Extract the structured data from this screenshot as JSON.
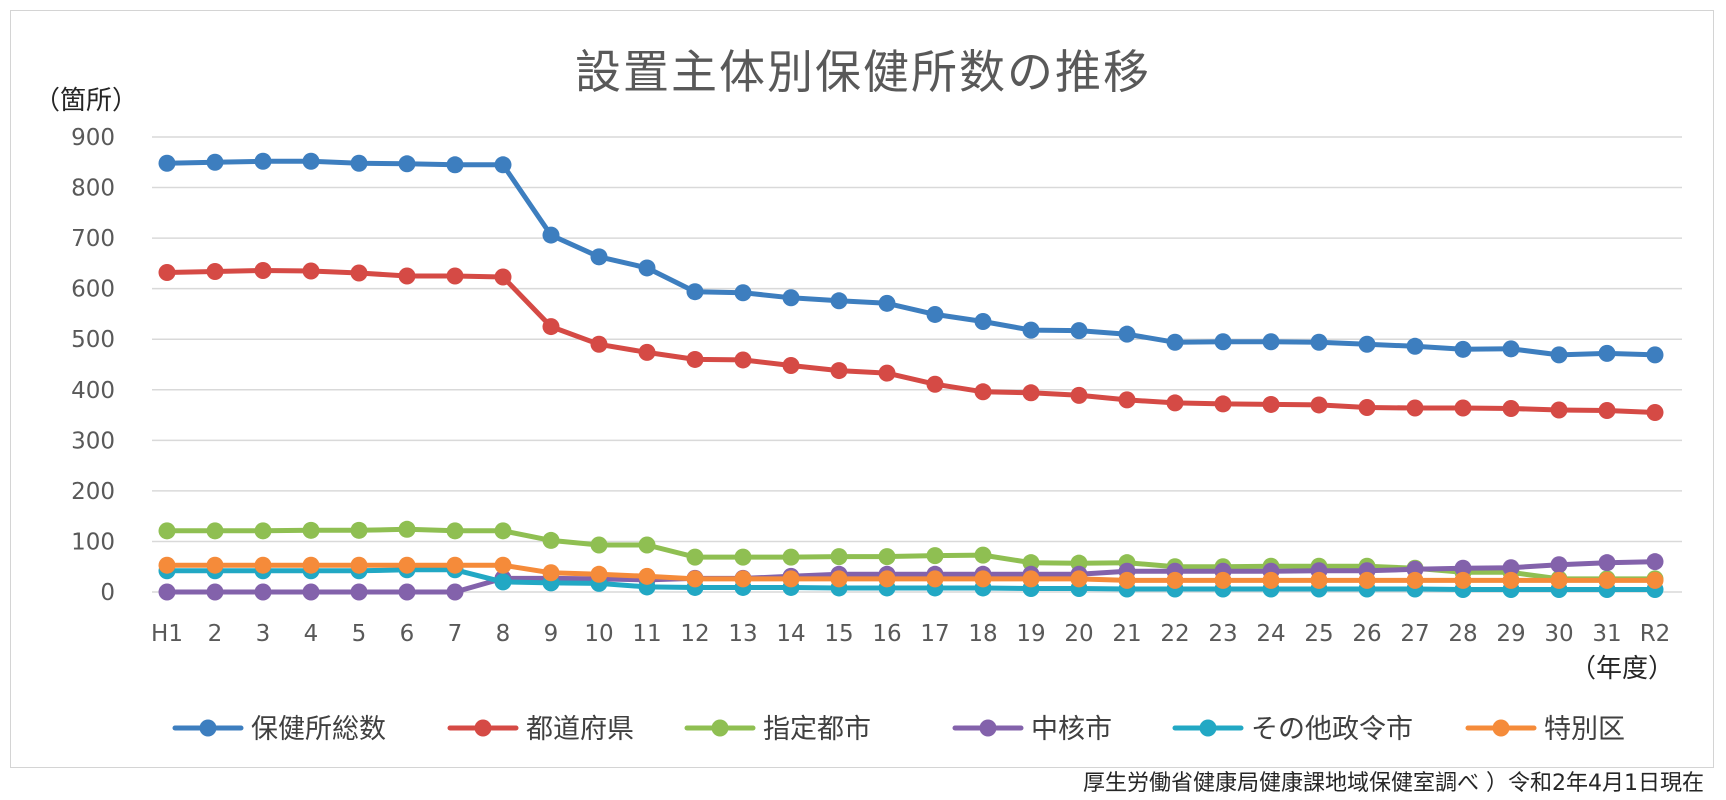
{
  "chart_data": {
    "type": "line",
    "title": "設置主体別保健所数の推移",
    "ylabel": "（箇所）",
    "xlabel": "（年度）",
    "ylim": [
      0,
      900
    ],
    "yticks": [
      "0",
      "100",
      "200",
      "300",
      "400",
      "500",
      "600",
      "700",
      "800",
      "900"
    ],
    "grid": true,
    "legend_position": "bottom",
    "categories": [
      "H1",
      "2",
      "3",
      "4",
      "5",
      "6",
      "7",
      "8",
      "9",
      "10",
      "11",
      "12",
      "13",
      "14",
      "15",
      "16",
      "17",
      "18",
      "19",
      "20",
      "21",
      "22",
      "23",
      "24",
      "25",
      "26",
      "27",
      "28",
      "29",
      "30",
      "31",
      "R2"
    ],
    "series": [
      {
        "name": "保健所総数",
        "color": "#3d7ebf",
        "values": [
          848,
          850,
          852,
          852,
          848,
          847,
          845,
          845,
          706,
          663,
          641,
          594,
          592,
          582,
          576,
          571,
          549,
          535,
          518,
          517,
          510,
          494,
          495,
          495,
          494,
          490,
          486,
          480,
          481,
          469,
          472,
          469
        ]
      },
      {
        "name": "都道府県",
        "color": "#d54a45",
        "values": [
          632,
          634,
          636,
          635,
          631,
          625,
          625,
          623,
          525,
          490,
          474,
          460,
          459,
          448,
          438,
          433,
          411,
          396,
          394,
          389,
          380,
          374,
          372,
          371,
          370,
          365,
          364,
          364,
          363,
          360,
          359,
          355
        ]
      },
      {
        "name": "指定都市",
        "color": "#8fbf52",
        "values": [
          121,
          121,
          121,
          122,
          122,
          124,
          121,
          121,
          102,
          93,
          93,
          69,
          69,
          69,
          70,
          70,
          72,
          73,
          58,
          57,
          58,
          50,
          50,
          51,
          51,
          51,
          47,
          39,
          39,
          26,
          26,
          26
        ]
      },
      {
        "name": "中核市",
        "color": "#8362ab",
        "values": [
          0,
          0,
          0,
          0,
          0,
          0,
          0,
          27,
          27,
          26,
          24,
          27,
          27,
          31,
          35,
          35,
          35,
          35,
          35,
          35,
          41,
          41,
          41,
          41,
          42,
          42,
          45,
          47,
          48,
          54,
          58,
          60
        ]
      },
      {
        "name": "その他政令市",
        "color": "#22a8c4",
        "values": [
          42,
          42,
          42,
          42,
          42,
          44,
          44,
          20,
          18,
          17,
          10,
          9,
          9,
          9,
          8,
          8,
          8,
          8,
          7,
          7,
          6,
          6,
          6,
          6,
          6,
          6,
          6,
          5,
          5,
          5,
          5,
          5
        ]
      },
      {
        "name": "特別区",
        "color": "#f58b3a",
        "values": [
          53,
          53,
          53,
          53,
          53,
          53,
          53,
          53,
          38,
          35,
          31,
          26,
          26,
          26,
          26,
          26,
          26,
          26,
          26,
          26,
          23,
          23,
          23,
          23,
          23,
          23,
          23,
          23,
          23,
          23,
          23,
          23
        ]
      }
    ]
  },
  "source_note": "厚生労働省健康局健康課地域保健室調べ ）令和2年4月1日現在"
}
